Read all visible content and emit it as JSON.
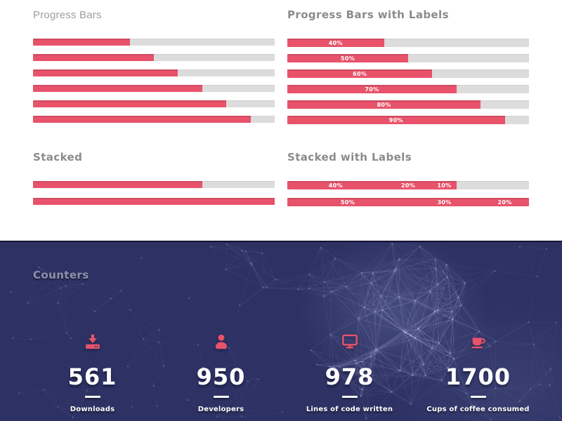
{
  "theme": {
    "accent": "#e8536b",
    "track": "#dcdcdc",
    "dark_bg": "#2d3163",
    "light_bg": "#ffffff"
  },
  "progress_plain": {
    "title": "Progress Bars",
    "bars": [
      {
        "value": 40
      },
      {
        "value": 50
      },
      {
        "value": 60
      },
      {
        "value": 70
      },
      {
        "value": 80
      },
      {
        "value": 90
      }
    ]
  },
  "progress_labeled": {
    "title": "Progress Bars with Labels",
    "bars": [
      {
        "value": 40,
        "label": "40%"
      },
      {
        "value": 50,
        "label": "50%"
      },
      {
        "value": 60,
        "label": "60%"
      },
      {
        "value": 70,
        "label": "70%"
      },
      {
        "value": 80,
        "label": "80%"
      },
      {
        "value": 90,
        "label": "90%"
      }
    ]
  },
  "stacked_plain": {
    "title": "Stacked",
    "bars": [
      {
        "segments": [
          {
            "value": 40
          },
          {
            "value": 20
          },
          {
            "value": 10
          }
        ]
      },
      {
        "segments": [
          {
            "value": 50
          },
          {
            "value": 30
          },
          {
            "value": 20
          }
        ]
      }
    ]
  },
  "stacked_labeled": {
    "title": "Stacked with Labels",
    "bars": [
      {
        "segments": [
          {
            "value": 40,
            "label": "40%"
          },
          {
            "value": 20,
            "label": "20%"
          },
          {
            "value": 10,
            "label": "10%"
          }
        ]
      },
      {
        "segments": [
          {
            "value": 50,
            "label": "50%"
          },
          {
            "value": 30,
            "label": "30%"
          },
          {
            "value": 20,
            "label": "20%"
          }
        ]
      }
    ]
  },
  "counters": {
    "title": "Counters",
    "items": [
      {
        "icon": "download-icon",
        "value": "561",
        "label": "Downloads"
      },
      {
        "icon": "person-icon",
        "value": "950",
        "label": "Developers"
      },
      {
        "icon": "monitor-icon",
        "value": "978",
        "label": "Lines of code written"
      },
      {
        "icon": "coffee-icon",
        "value": "1700",
        "label": "Cups of coffee consumed"
      }
    ]
  }
}
